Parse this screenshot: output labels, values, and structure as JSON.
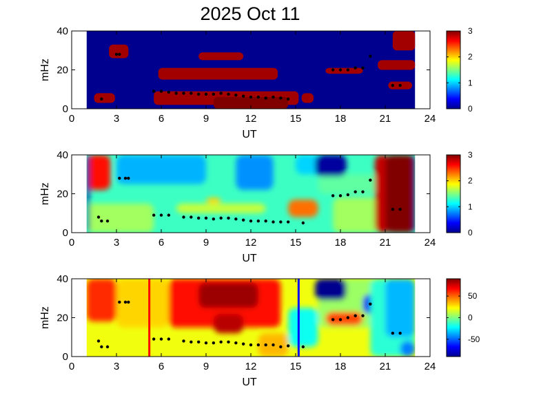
{
  "figure": {
    "title": "2025 Oct 11"
  },
  "chart_data": [
    {
      "type": "heatmap",
      "title": "2025 Oct 11",
      "xlabel": "UT",
      "ylabel": "mHz",
      "xlim": [
        0,
        24
      ],
      "ylim": [
        0,
        40
      ],
      "xticks": [
        "0",
        "3",
        "6",
        "9",
        "12",
        "15",
        "18",
        "21",
        "24"
      ],
      "yticks": [
        "0",
        "20",
        "40"
      ],
      "colorbar": {
        "range": [
          0,
          3
        ],
        "ticks": [
          "0",
          "1",
          "2",
          "3"
        ]
      },
      "data_extent_ut": [
        1,
        23
      ],
      "background_value": 0,
      "regions": [
        {
          "x": [
            2.5,
            3.8
          ],
          "y": [
            26,
            33
          ],
          "value": 2.9
        },
        {
          "x": [
            5.8,
            13.8
          ],
          "y": [
            15,
            21
          ],
          "value": 2.9
        },
        {
          "x": [
            8.5,
            11.5
          ],
          "y": [
            25,
            29
          ],
          "value": 2.9
        },
        {
          "x": [
            5.5,
            15.2
          ],
          "y": [
            2,
            9
          ],
          "value": 2.9
        },
        {
          "x": [
            9.5,
            14.5
          ],
          "y": [
            0,
            6
          ],
          "value": 3.0
        },
        {
          "x": [
            1.5,
            2.9
          ],
          "y": [
            3,
            8
          ],
          "value": 2.9
        },
        {
          "x": [
            15.4,
            16.2
          ],
          "y": [
            3,
            8
          ],
          "value": 2.9
        },
        {
          "x": [
            17.0,
            19.5
          ],
          "y": [
            18,
            21
          ],
          "value": 2.9
        },
        {
          "x": [
            20.5,
            23.0
          ],
          "y": [
            20,
            25
          ],
          "value": 2.9
        },
        {
          "x": [
            21.5,
            23.0
          ],
          "y": [
            30,
            40
          ],
          "value": 2.9
        },
        {
          "x": [
            21.2,
            22.8
          ],
          "y": [
            10,
            14
          ],
          "value": 2.9
        }
      ],
      "markers": [
        [
          2.0,
          5
        ],
        [
          3.0,
          28
        ],
        [
          3.2,
          28
        ],
        [
          5.5,
          9
        ],
        [
          6.0,
          9
        ],
        [
          6.5,
          8.5
        ],
        [
          7.0,
          8
        ],
        [
          7.5,
          8
        ],
        [
          8.0,
          8
        ],
        [
          8.5,
          7.5
        ],
        [
          9.0,
          7.5
        ],
        [
          9.5,
          7.5
        ],
        [
          10.0,
          8
        ],
        [
          10.5,
          7.5
        ],
        [
          11.0,
          7
        ],
        [
          11.5,
          6.5
        ],
        [
          12.0,
          6
        ],
        [
          12.5,
          6
        ],
        [
          13.0,
          5.5
        ],
        [
          13.5,
          6
        ],
        [
          14.0,
          5.5
        ],
        [
          14.5,
          5
        ],
        [
          17.5,
          20
        ],
        [
          18.0,
          20
        ],
        [
          18.5,
          20
        ],
        [
          19.0,
          21
        ],
        [
          19.5,
          21
        ],
        [
          20.0,
          27
        ],
        [
          21.5,
          12
        ],
        [
          22.0,
          12
        ]
      ]
    },
    {
      "type": "heatmap",
      "xlabel": "UT",
      "ylabel": "mHz",
      "xlim": [
        0,
        24
      ],
      "ylim": [
        0,
        40
      ],
      "xticks": [
        "0",
        "3",
        "6",
        "9",
        "12",
        "15",
        "18",
        "21",
        "24"
      ],
      "yticks": [
        "0",
        "20",
        "40"
      ],
      "colorbar": {
        "range": [
          0,
          3
        ],
        "ticks": [
          "0",
          "1",
          "2",
          "3"
        ]
      },
      "data_extent_ut": [
        1,
        23
      ],
      "background_value": 1.3,
      "regions": [
        {
          "x": [
            1.0,
            2.6
          ],
          "y": [
            22,
            40
          ],
          "value": 2.6
        },
        {
          "x": [
            3.0,
            9.0
          ],
          "y": [
            25,
            40
          ],
          "value": 0.9
        },
        {
          "x": [
            11.0,
            13.5
          ],
          "y": [
            22,
            40
          ],
          "value": 0.8
        },
        {
          "x": [
            1.0,
            5.5
          ],
          "y": [
            0,
            15
          ],
          "value": 1.6
        },
        {
          "x": [
            7.0,
            13.0
          ],
          "y": [
            10,
            15
          ],
          "value": 1.7
        },
        {
          "x": [
            9.0,
            10.0
          ],
          "y": [
            15,
            18
          ],
          "value": 2.0
        },
        {
          "x": [
            14.5,
            16.5
          ],
          "y": [
            8,
            17
          ],
          "value": 2.3
        },
        {
          "x": [
            16.5,
            20.5
          ],
          "y": [
            20,
            30
          ],
          "value": 1.4
        },
        {
          "x": [
            17.5,
            20.5
          ],
          "y": [
            0,
            18
          ],
          "value": 1.6
        },
        {
          "x": [
            15.0,
            17.5
          ],
          "y": [
            30,
            40
          ],
          "value": 1.0
        },
        {
          "x": [
            16.3,
            18.4
          ],
          "y": [
            29,
            40
          ],
          "value": 0.05
        },
        {
          "x": [
            20.3,
            21.3
          ],
          "y": [
            0,
            40
          ],
          "value": 2.8
        },
        {
          "x": [
            21.0,
            23.0
          ],
          "y": [
            0,
            40
          ],
          "value": 3.0
        },
        {
          "x": [
            1.0,
            1.2
          ],
          "y": [
            0,
            40
          ],
          "value": 0.05
        },
        {
          "x": [
            22.9,
            23.0
          ],
          "y": [
            0,
            40
          ],
          "value": 0.05
        }
      ],
      "markers": [
        [
          1.8,
          8
        ],
        [
          2.0,
          6
        ],
        [
          2.4,
          6
        ],
        [
          3.2,
          28
        ],
        [
          3.6,
          28
        ],
        [
          3.8,
          28
        ],
        [
          5.5,
          9
        ],
        [
          6.0,
          9
        ],
        [
          6.5,
          9
        ],
        [
          7.5,
          8
        ],
        [
          8.0,
          8
        ],
        [
          8.5,
          7.5
        ],
        [
          9.0,
          7.5
        ],
        [
          9.5,
          7
        ],
        [
          10.0,
          7.5
        ],
        [
          10.5,
          7.5
        ],
        [
          11.0,
          7
        ],
        [
          11.5,
          6.5
        ],
        [
          12.0,
          6
        ],
        [
          12.5,
          6
        ],
        [
          13.0,
          6
        ],
        [
          13.5,
          5.5
        ],
        [
          14.0,
          5.5
        ],
        [
          14.5,
          5.5
        ],
        [
          15.5,
          5
        ],
        [
          17.5,
          19
        ],
        [
          18.0,
          19
        ],
        [
          18.5,
          19.5
        ],
        [
          19.0,
          21
        ],
        [
          19.5,
          21
        ],
        [
          20.0,
          27
        ],
        [
          21.5,
          12
        ],
        [
          22.0,
          12
        ]
      ]
    },
    {
      "type": "heatmap",
      "xlabel": "UT",
      "ylabel": "mHz",
      "xlim": [
        0,
        24
      ],
      "ylim": [
        0,
        40
      ],
      "xticks": [
        "0",
        "3",
        "6",
        "9",
        "12",
        "15",
        "18",
        "21",
        "24"
      ],
      "yticks": [
        "0",
        "20",
        "40"
      ],
      "colorbar": {
        "range": [
          -90,
          90
        ],
        "ticks": [
          "50",
          "0",
          "-50"
        ]
      },
      "data_extent_ut": [
        1,
        23
      ],
      "background_value": 20,
      "regions": [
        {
          "x": [
            1.0,
            3.0
          ],
          "y": [
            18,
            40
          ],
          "value": 60
        },
        {
          "x": [
            3.0,
            6.5
          ],
          "y": [
            15,
            40
          ],
          "value": 30
        },
        {
          "x": [
            6.5,
            14.0
          ],
          "y": [
            15,
            40
          ],
          "value": 65
        },
        {
          "x": [
            8.5,
            12.5
          ],
          "y": [
            25,
            38
          ],
          "value": 85
        },
        {
          "x": [
            9.5,
            11.5
          ],
          "y": [
            12,
            22
          ],
          "value": 80
        },
        {
          "x": [
            12.5,
            14.5
          ],
          "y": [
            0,
            12
          ],
          "value": 35
        },
        {
          "x": [
            14.5,
            16.5
          ],
          "y": [
            5,
            25
          ],
          "value": -20
        },
        {
          "x": [
            16.5,
            20.5
          ],
          "y": [
            15,
            40
          ],
          "value": 5
        },
        {
          "x": [
            16.3,
            18.4
          ],
          "y": [
            29,
            40
          ],
          "value": -90
        },
        {
          "x": [
            17.0,
            19.5
          ],
          "y": [
            16,
            23
          ],
          "value": 55
        },
        {
          "x": [
            19.5,
            21.0
          ],
          "y": [
            22,
            32
          ],
          "value": -70
        },
        {
          "x": [
            20.0,
            23.0
          ],
          "y": [
            0,
            40
          ],
          "value": -15
        },
        {
          "x": [
            21.0,
            23.0
          ],
          "y": [
            10,
            40
          ],
          "value": -35
        },
        {
          "x": [
            22.0,
            23.0
          ],
          "y": [
            0,
            8
          ],
          "value": -45
        }
      ],
      "vertical_lines": [
        {
          "x": 5.2,
          "color": "#ff0000"
        },
        {
          "x": 15.2,
          "color": "#0000ff"
        }
      ],
      "markers": [
        [
          1.8,
          8
        ],
        [
          2.0,
          5
        ],
        [
          2.4,
          5
        ],
        [
          3.2,
          28
        ],
        [
          3.6,
          28
        ],
        [
          3.8,
          28
        ],
        [
          5.5,
          9
        ],
        [
          6.0,
          9
        ],
        [
          6.5,
          9
        ],
        [
          7.5,
          8
        ],
        [
          8.0,
          7.5
        ],
        [
          8.5,
          7.5
        ],
        [
          9.0,
          7
        ],
        [
          9.5,
          7
        ],
        [
          10.0,
          7.5
        ],
        [
          10.5,
          7.5
        ],
        [
          11.0,
          7
        ],
        [
          11.5,
          6.5
        ],
        [
          12.0,
          6
        ],
        [
          12.5,
          6
        ],
        [
          13.0,
          6
        ],
        [
          13.5,
          6
        ],
        [
          14.0,
          5
        ],
        [
          14.5,
          5.5
        ],
        [
          15.5,
          5
        ],
        [
          17.5,
          19
        ],
        [
          18.0,
          19
        ],
        [
          18.5,
          20
        ],
        [
          19.0,
          21
        ],
        [
          19.5,
          21
        ],
        [
          20.0,
          27
        ],
        [
          21.5,
          12
        ],
        [
          22.0,
          12
        ]
      ]
    }
  ]
}
